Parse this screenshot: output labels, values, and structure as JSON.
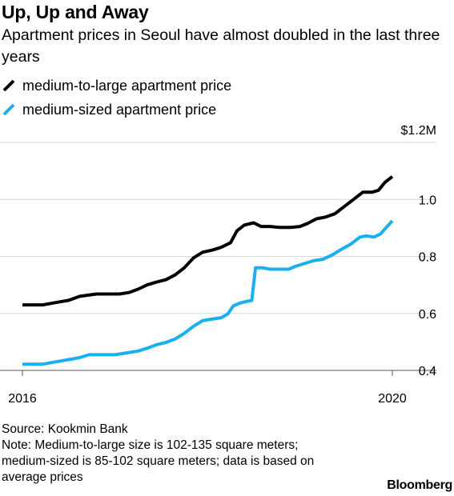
{
  "header": {
    "title": "Up, Up and Away",
    "subtitle": "Apartment prices in Seoul have almost doubled in the last three years"
  },
  "legend": {
    "items": [
      {
        "label": "medium-to-large apartment price",
        "color": "#000000"
      },
      {
        "label": "medium-sized apartment price",
        "color": "#1ab0ef"
      }
    ]
  },
  "footer": {
    "source": "Source: Kookmin Bank",
    "note": "Note: Medium-to-large size is 102-135 square meters; medium-sized is 85-102 square meters; data is based on average prices",
    "brand": "Bloomberg"
  },
  "chart_data": {
    "type": "line",
    "title": "Up, Up and Away",
    "subtitle": "Apartment prices in Seoul have almost doubled in the last three years",
    "xlabel": "",
    "ylabel": "",
    "xlim": [
      2016,
      2020.2
    ],
    "ylim": [
      0.37,
      1.22
    ],
    "x_ticks": [
      {
        "value": 2016,
        "label": "2016"
      },
      {
        "value": 2020,
        "label": "2020"
      }
    ],
    "y_ticks": [
      {
        "value": 1.2,
        "label": "$1.2M"
      },
      {
        "value": 1.0,
        "label": "1.0"
      },
      {
        "value": 0.8,
        "label": "0.8"
      },
      {
        "value": 0.6,
        "label": "0.6"
      },
      {
        "value": 0.4,
        "label": "0.4"
      }
    ],
    "grid": true,
    "series": [
      {
        "name": "medium-to-large apartment price",
        "color": "#000000",
        "points": [
          [
            2016.0,
            0.63
          ],
          [
            2016.22,
            0.63
          ],
          [
            2016.36,
            0.638
          ],
          [
            2016.5,
            0.646
          ],
          [
            2016.62,
            0.66
          ],
          [
            2016.8,
            0.668
          ],
          [
            2016.9,
            0.668
          ],
          [
            2017.05,
            0.668
          ],
          [
            2017.15,
            0.673
          ],
          [
            2017.25,
            0.685
          ],
          [
            2017.35,
            0.7
          ],
          [
            2017.45,
            0.71
          ],
          [
            2017.55,
            0.718
          ],
          [
            2017.65,
            0.735
          ],
          [
            2017.75,
            0.76
          ],
          [
            2017.85,
            0.795
          ],
          [
            2017.95,
            0.815
          ],
          [
            2018.05,
            0.822
          ],
          [
            2018.15,
            0.832
          ],
          [
            2018.25,
            0.848
          ],
          [
            2018.32,
            0.89
          ],
          [
            2018.4,
            0.91
          ],
          [
            2018.5,
            0.918
          ],
          [
            2018.58,
            0.905
          ],
          [
            2018.68,
            0.905
          ],
          [
            2018.78,
            0.902
          ],
          [
            2018.9,
            0.902
          ],
          [
            2019.0,
            0.905
          ],
          [
            2019.08,
            0.915
          ],
          [
            2019.18,
            0.932
          ],
          [
            2019.28,
            0.938
          ],
          [
            2019.38,
            0.95
          ],
          [
            2019.48,
            0.975
          ],
          [
            2019.58,
            1.0
          ],
          [
            2019.68,
            1.025
          ],
          [
            2019.78,
            1.025
          ],
          [
            2019.85,
            1.032
          ],
          [
            2019.92,
            1.06
          ],
          [
            2020.0,
            1.08
          ]
        ]
      },
      {
        "name": "medium-sized apartment price",
        "color": "#1ab0ef",
        "points": [
          [
            2016.0,
            0.422
          ],
          [
            2016.22,
            0.422
          ],
          [
            2016.36,
            0.43
          ],
          [
            2016.5,
            0.438
          ],
          [
            2016.62,
            0.445
          ],
          [
            2016.72,
            0.455
          ],
          [
            2016.85,
            0.455
          ],
          [
            2017.0,
            0.455
          ],
          [
            2017.1,
            0.46
          ],
          [
            2017.25,
            0.468
          ],
          [
            2017.35,
            0.478
          ],
          [
            2017.45,
            0.49
          ],
          [
            2017.55,
            0.498
          ],
          [
            2017.65,
            0.51
          ],
          [
            2017.75,
            0.53
          ],
          [
            2017.85,
            0.555
          ],
          [
            2017.95,
            0.575
          ],
          [
            2018.05,
            0.58
          ],
          [
            2018.15,
            0.585
          ],
          [
            2018.22,
            0.598
          ],
          [
            2018.28,
            0.626
          ],
          [
            2018.35,
            0.636
          ],
          [
            2018.42,
            0.642
          ],
          [
            2018.48,
            0.645
          ],
          [
            2018.52,
            0.76
          ],
          [
            2018.6,
            0.76
          ],
          [
            2018.68,
            0.755
          ],
          [
            2018.78,
            0.755
          ],
          [
            2018.88,
            0.755
          ],
          [
            2018.95,
            0.765
          ],
          [
            2019.05,
            0.775
          ],
          [
            2019.15,
            0.785
          ],
          [
            2019.25,
            0.79
          ],
          [
            2019.35,
            0.805
          ],
          [
            2019.45,
            0.825
          ],
          [
            2019.55,
            0.843
          ],
          [
            2019.65,
            0.868
          ],
          [
            2019.72,
            0.872
          ],
          [
            2019.8,
            0.868
          ],
          [
            2019.87,
            0.878
          ],
          [
            2019.93,
            0.9
          ],
          [
            2020.0,
            0.925
          ]
        ]
      }
    ]
  }
}
